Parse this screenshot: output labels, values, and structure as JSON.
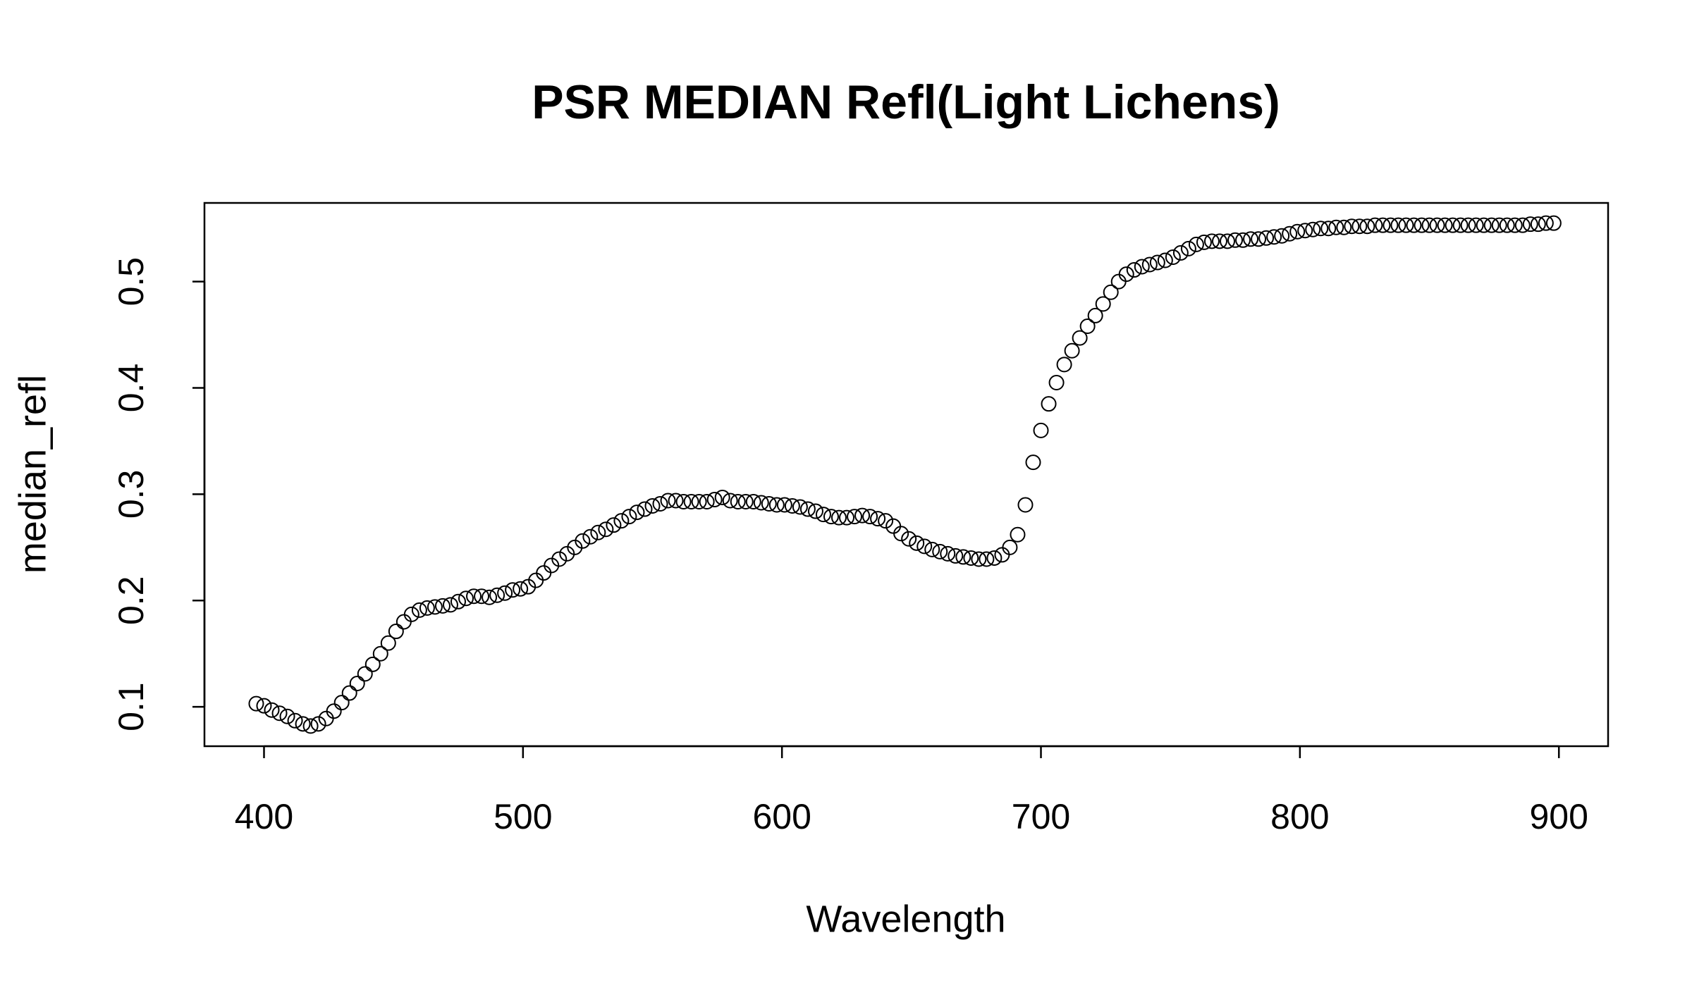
{
  "chart_data": {
    "type": "scatter",
    "title": "PSR MEDIAN Refl(Light Lichens)",
    "x_label": "Wavelength",
    "y_label": "median_refl",
    "color": "#000000",
    "xlim": [
      377,
      919
    ],
    "ylim": [
      0.063,
      0.574
    ],
    "xticks": [
      400,
      500,
      600,
      700,
      800,
      900
    ],
    "yticks": [
      0.1,
      0.2,
      0.3,
      0.4,
      0.5
    ],
    "x": [
      397,
      400,
      403,
      406,
      409,
      412,
      415,
      418,
      421,
      424,
      427,
      430,
      433,
      436,
      439,
      442,
      445,
      448,
      451,
      454,
      457,
      460,
      463,
      466,
      469,
      472,
      475,
      478,
      481,
      484,
      487,
      490,
      493,
      496,
      499,
      502,
      505,
      508,
      511,
      514,
      517,
      520,
      523,
      526,
      529,
      532,
      535,
      538,
      541,
      544,
      547,
      550,
      553,
      556,
      559,
      562,
      565,
      568,
      571,
      574,
      577,
      580,
      583,
      586,
      589,
      592,
      595,
      598,
      601,
      604,
      607,
      610,
      613,
      616,
      619,
      622,
      625,
      628,
      631,
      634,
      637,
      640,
      643,
      646,
      649,
      652,
      655,
      658,
      661,
      664,
      667,
      670,
      673,
      676,
      679,
      682,
      685,
      688,
      691,
      694,
      697,
      700,
      703,
      706,
      709,
      712,
      715,
      718,
      721,
      724,
      727,
      730,
      733,
      736,
      739,
      742,
      745,
      748,
      751,
      754,
      757,
      760,
      763,
      766,
      769,
      772,
      775,
      778,
      781,
      784,
      787,
      790,
      793,
      796,
      799,
      802,
      805,
      808,
      811,
      814,
      817,
      820,
      823,
      826,
      829,
      832,
      835,
      838,
      841,
      844,
      847,
      850,
      853,
      856,
      859,
      862,
      865,
      868,
      871,
      874,
      877,
      880,
      883,
      886,
      889,
      892,
      895,
      898
    ],
    "values": [
      0.103,
      0.101,
      0.097,
      0.094,
      0.091,
      0.087,
      0.084,
      0.082,
      0.084,
      0.089,
      0.096,
      0.104,
      0.113,
      0.122,
      0.131,
      0.14,
      0.15,
      0.16,
      0.171,
      0.18,
      0.187,
      0.191,
      0.193,
      0.194,
      0.195,
      0.196,
      0.199,
      0.202,
      0.204,
      0.204,
      0.203,
      0.205,
      0.207,
      0.21,
      0.211,
      0.213,
      0.219,
      0.226,
      0.233,
      0.239,
      0.244,
      0.25,
      0.256,
      0.26,
      0.264,
      0.267,
      0.271,
      0.275,
      0.279,
      0.283,
      0.286,
      0.289,
      0.291,
      0.294,
      0.294,
      0.293,
      0.293,
      0.293,
      0.293,
      0.295,
      0.297,
      0.294,
      0.293,
      0.293,
      0.293,
      0.292,
      0.291,
      0.29,
      0.29,
      0.289,
      0.288,
      0.286,
      0.284,
      0.281,
      0.279,
      0.278,
      0.278,
      0.279,
      0.28,
      0.279,
      0.277,
      0.275,
      0.27,
      0.263,
      0.258,
      0.254,
      0.251,
      0.248,
      0.246,
      0.244,
      0.242,
      0.241,
      0.24,
      0.239,
      0.239,
      0.24,
      0.243,
      0.25,
      0.262,
      0.29,
      0.33,
      0.36,
      0.385,
      0.405,
      0.422,
      0.435,
      0.447,
      0.458,
      0.468,
      0.479,
      0.49,
      0.5,
      0.507,
      0.511,
      0.514,
      0.516,
      0.518,
      0.52,
      0.523,
      0.527,
      0.531,
      0.535,
      0.537,
      0.538,
      0.538,
      0.538,
      0.539,
      0.539,
      0.54,
      0.54,
      0.541,
      0.542,
      0.543,
      0.545,
      0.547,
      0.548,
      0.549,
      0.55,
      0.55,
      0.551,
      0.551,
      0.552,
      0.552,
      0.552,
      0.553,
      0.553,
      0.553,
      0.553,
      0.553,
      0.553,
      0.553,
      0.553,
      0.553,
      0.553,
      0.553,
      0.553,
      0.553,
      0.553,
      0.553,
      0.553,
      0.553,
      0.553,
      0.553,
      0.553,
      0.554,
      0.554,
      0.555,
      0.555
    ]
  }
}
